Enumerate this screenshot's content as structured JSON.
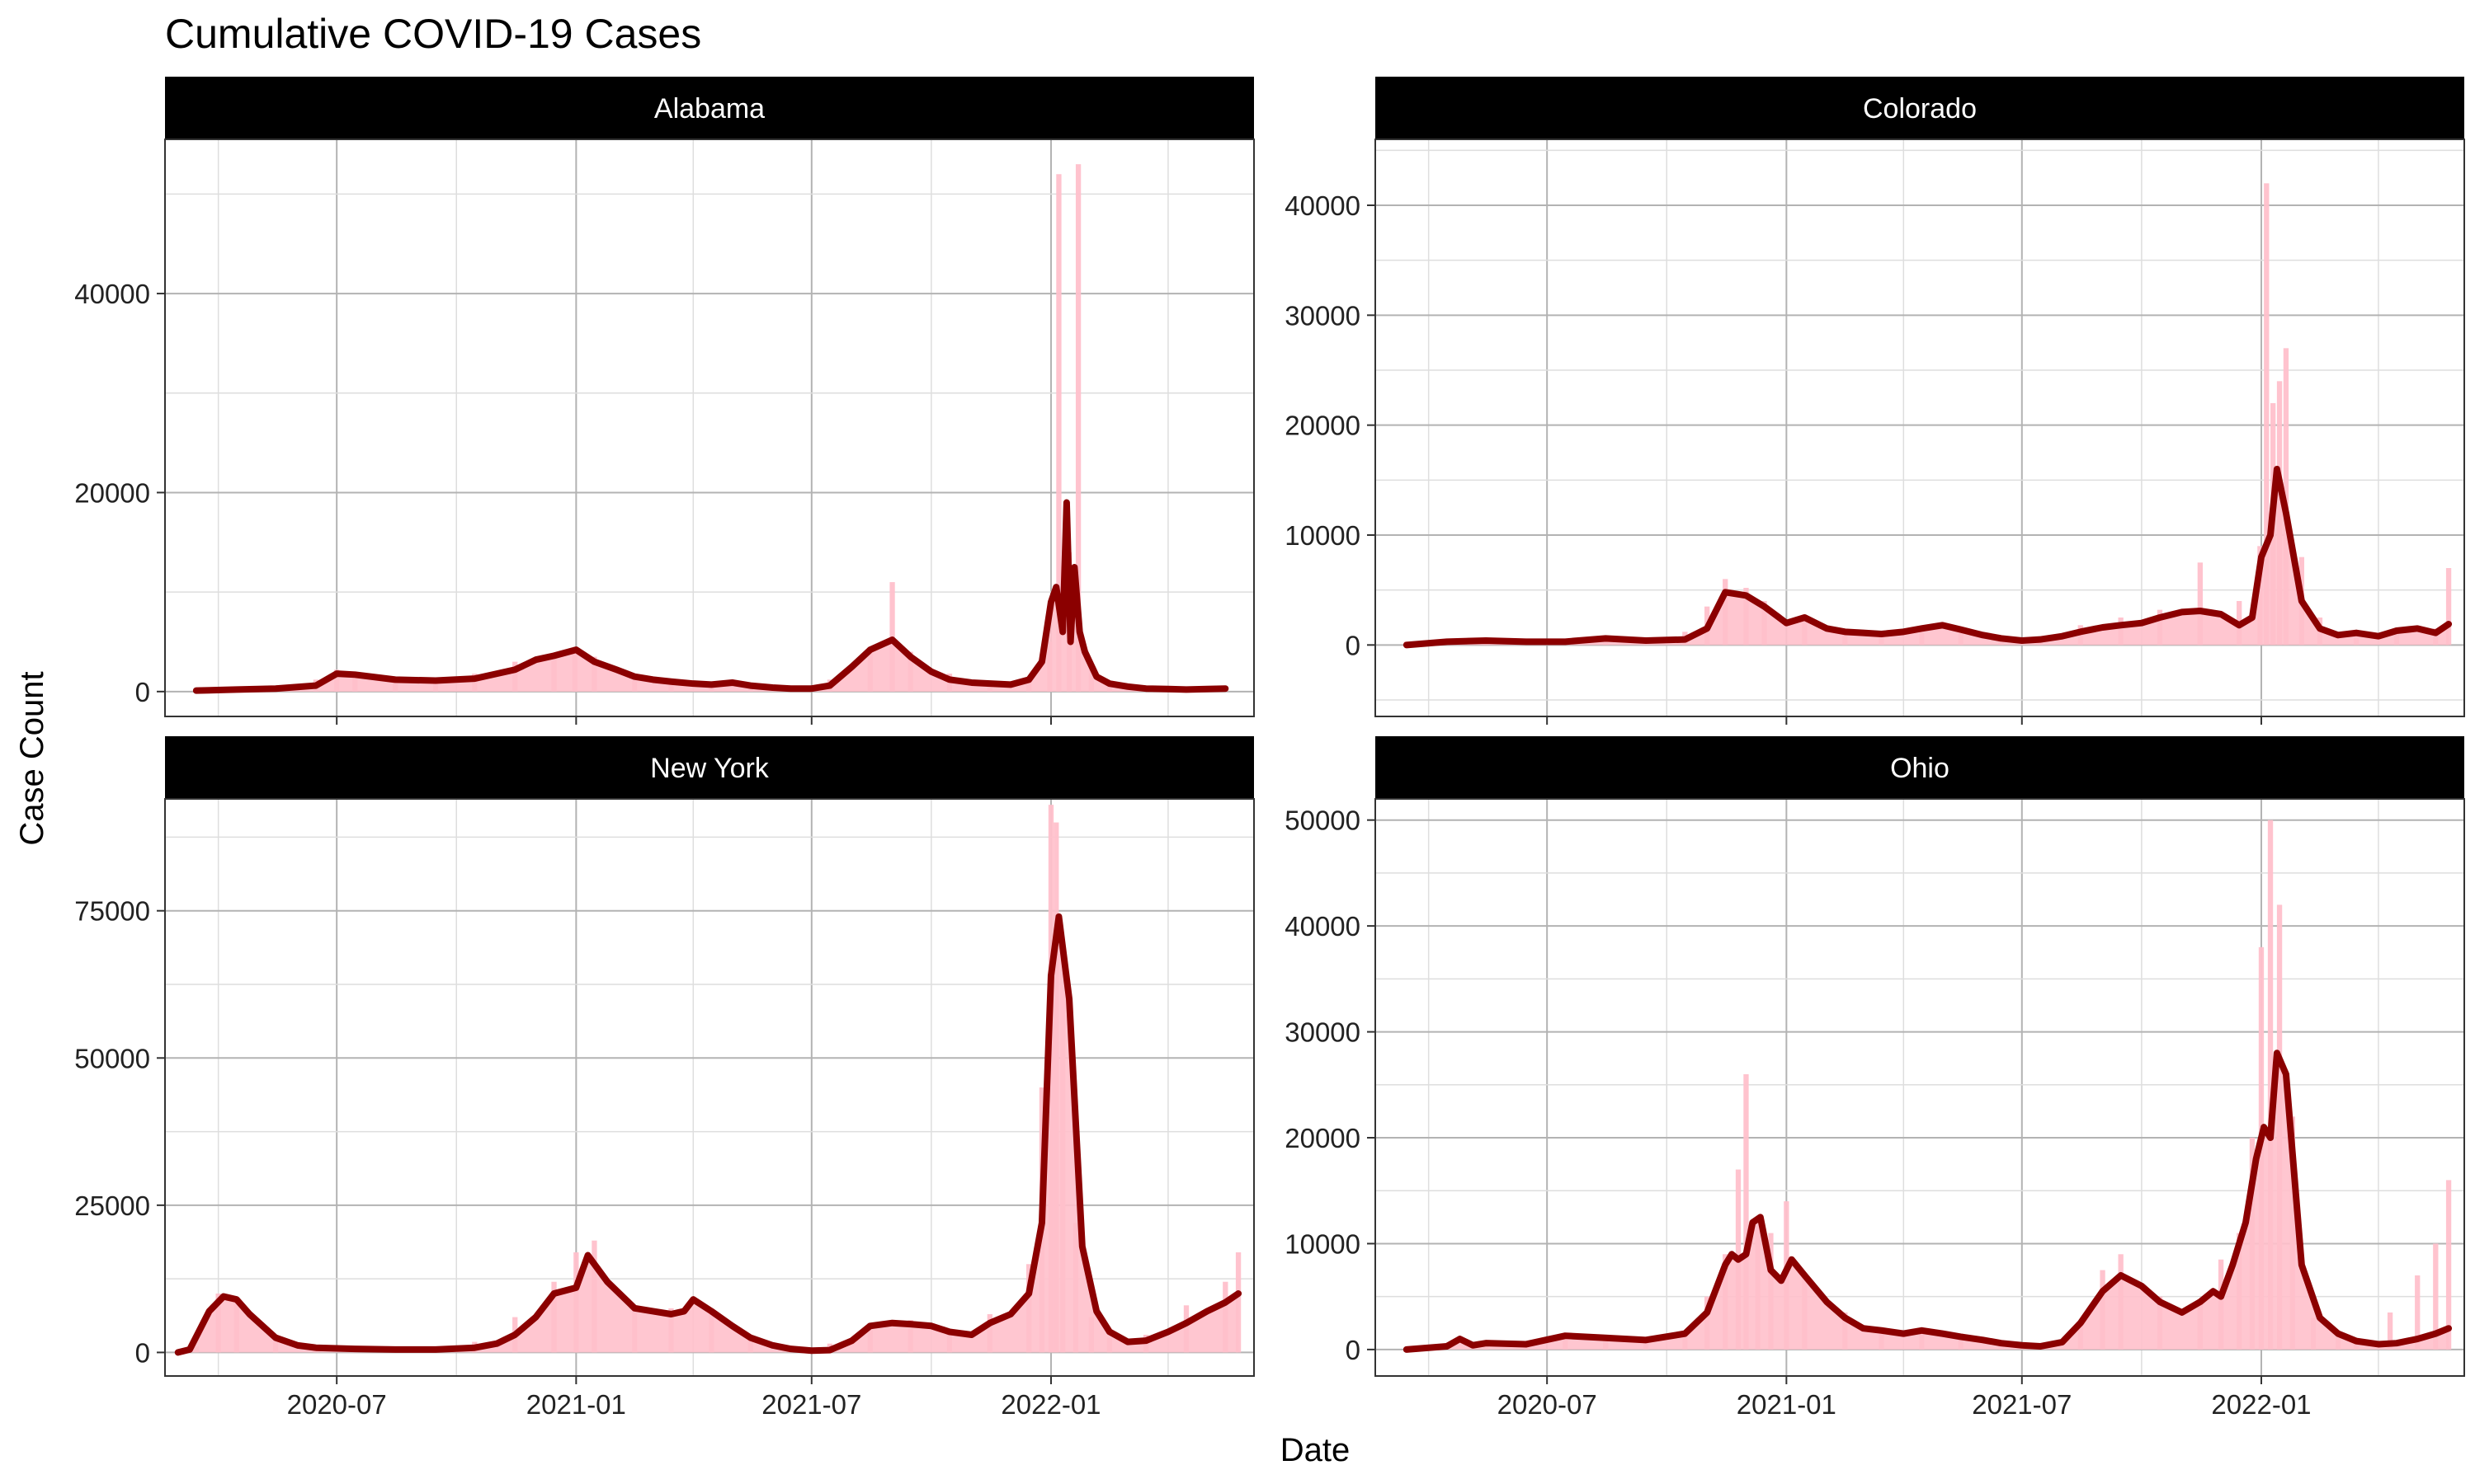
{
  "figure": {
    "title": "Cumulative COVID-19 Cases",
    "xlabel": "Date",
    "ylabel": "Case Count"
  },
  "colors": {
    "bars": "#ffc0cb",
    "line": "#8b0000",
    "strip": "#000000",
    "strip_text": "#ffffff",
    "grid_major": "#b3b3b3",
    "grid_minor": "#dedede"
  },
  "chart_data": [
    {
      "type": "bar",
      "title": "Alabama",
      "x_ticks": [
        "2020-07",
        "2021-01",
        "2021-07",
        "2022-01"
      ],
      "xlim": [
        "2020-02-20",
        "2022-06-06"
      ],
      "ylim": [
        -2500,
        55500
      ],
      "y_ticks": [
        0,
        20000,
        40000
      ],
      "series": [
        {
          "name": "",
          "render": "bar",
          "x": [
            "2020-03-15",
            "2020-04-15",
            "2020-05-15",
            "2020-06-15",
            "2020-07-01",
            "2020-07-15",
            "2020-08-15",
            "2020-09-15",
            "2020-10-15",
            "2020-11-15",
            "2020-12-15",
            "2020-12-31",
            "2021-01-15",
            "2021-02-15",
            "2021-03-15",
            "2021-04-15",
            "2021-05-15",
            "2021-06-15",
            "2021-07-15",
            "2021-08-15",
            "2021-09-01",
            "2021-09-15",
            "2021-10-15",
            "2021-11-15",
            "2021-12-15",
            "2021-12-31",
            "2022-01-07",
            "2022-01-15",
            "2022-01-22",
            "2022-02-01",
            "2022-02-15",
            "2022-03-15",
            "2022-04-15",
            "2022-05-15"
          ],
          "values": [
            200,
            400,
            500,
            1200,
            2200,
            1500,
            1500,
            1300,
            1800,
            3000,
            3500,
            4200,
            3500,
            1500,
            1000,
            600,
            400,
            300,
            1200,
            4500,
            11000,
            4000,
            1800,
            700,
            900,
            5000,
            52000,
            14000,
            53000,
            2500,
            1000,
            400,
            300,
            300
          ]
        },
        {
          "name": "",
          "render": "line",
          "x": [
            "2020-03-15",
            "2020-04-15",
            "2020-05-15",
            "2020-06-15",
            "2020-07-01",
            "2020-07-15",
            "2020-08-15",
            "2020-09-15",
            "2020-10-15",
            "2020-11-15",
            "2020-12-01",
            "2020-12-15",
            "2021-01-01",
            "2021-01-15",
            "2021-02-01",
            "2021-02-15",
            "2021-03-01",
            "2021-03-15",
            "2021-04-01",
            "2021-04-15",
            "2021-05-01",
            "2021-05-15",
            "2021-06-01",
            "2021-06-15",
            "2021-07-01",
            "2021-07-15",
            "2021-08-01",
            "2021-08-15",
            "2021-09-01",
            "2021-09-15",
            "2021-10-01",
            "2021-10-15",
            "2021-11-01",
            "2021-11-15",
            "2021-12-01",
            "2021-12-15",
            "2021-12-25",
            "2022-01-01",
            "2022-01-05",
            "2022-01-10",
            "2022-01-13",
            "2022-01-16",
            "2022-01-19",
            "2022-01-23",
            "2022-01-27",
            "2022-02-05",
            "2022-02-15",
            "2022-03-01",
            "2022-03-15",
            "2022-04-01",
            "2022-04-15",
            "2022-05-01",
            "2022-05-15"
          ],
          "values": [
            100,
            200,
            300,
            600,
            1800,
            1700,
            1200,
            1100,
            1300,
            2200,
            3200,
            3600,
            4200,
            3000,
            2200,
            1500,
            1200,
            1000,
            800,
            700,
            900,
            600,
            400,
            300,
            300,
            600,
            2500,
            4200,
            5200,
            3500,
            2000,
            1200,
            900,
            800,
            700,
            1200,
            3000,
            9000,
            10500,
            6000,
            19000,
            5000,
            12500,
            6000,
            4000,
            1500,
            800,
            500,
            300,
            250,
            200,
            250,
            300
          ]
        }
      ]
    },
    {
      "type": "bar",
      "title": "Colorado",
      "x_ticks": [
        "2020-07",
        "2021-01",
        "2021-07",
        "2022-01"
      ],
      "xlim": [
        "2020-02-20",
        "2022-06-06"
      ],
      "ylim": [
        -6500,
        46000
      ],
      "y_ticks": [
        0,
        10000,
        20000,
        30000,
        40000
      ],
      "series": [
        {
          "name": "",
          "render": "bar",
          "x": [
            "2020-03-15",
            "2020-04-15",
            "2020-05-15",
            "2020-06-15",
            "2020-07-15",
            "2020-08-15",
            "2020-09-15",
            "2020-10-15",
            "2020-11-01",
            "2020-11-15",
            "2020-12-01",
            "2020-12-15",
            "2021-01-15",
            "2021-02-15",
            "2021-03-15",
            "2021-04-15",
            "2021-05-15",
            "2021-06-15",
            "2021-07-15",
            "2021-08-15",
            "2021-09-15",
            "2021-10-15",
            "2021-11-15",
            "2021-12-15",
            "2021-12-31",
            "2022-01-05",
            "2022-01-10",
            "2022-01-15",
            "2022-01-20",
            "2022-02-01",
            "2022-02-15",
            "2022-03-15",
            "2022-04-15",
            "2022-05-15",
            "2022-05-25"
          ],
          "values": [
            300,
            500,
            400,
            300,
            500,
            400,
            500,
            1200,
            3500,
            6000,
            5200,
            4000,
            2500,
            1200,
            1000,
            1500,
            1600,
            700,
            600,
            1800,
            2500,
            3200,
            7500,
            4000,
            9000,
            42000,
            22000,
            24000,
            27000,
            8000,
            2500,
            1200,
            1500,
            1500,
            7000
          ]
        },
        {
          "name": "",
          "render": "line",
          "x": [
            "2020-03-15",
            "2020-04-15",
            "2020-05-15",
            "2020-06-15",
            "2020-07-15",
            "2020-08-15",
            "2020-09-15",
            "2020-10-15",
            "2020-11-01",
            "2020-11-15",
            "2020-12-01",
            "2020-12-15",
            "2021-01-01",
            "2021-01-15",
            "2021-02-01",
            "2021-02-15",
            "2021-03-01",
            "2021-03-15",
            "2021-04-01",
            "2021-04-15",
            "2021-05-01",
            "2021-05-15",
            "2021-06-01",
            "2021-06-15",
            "2021-07-01",
            "2021-07-15",
            "2021-08-01",
            "2021-08-15",
            "2021-09-01",
            "2021-09-15",
            "2021-10-01",
            "2021-10-15",
            "2021-11-01",
            "2021-11-15",
            "2021-12-01",
            "2021-12-15",
            "2021-12-25",
            "2022-01-01",
            "2022-01-08",
            "2022-01-13",
            "2022-01-20",
            "2022-02-01",
            "2022-02-15",
            "2022-03-01",
            "2022-03-15",
            "2022-04-01",
            "2022-04-15",
            "2022-05-01",
            "2022-05-15",
            "2022-05-25"
          ],
          "values": [
            0,
            300,
            400,
            300,
            300,
            600,
            400,
            500,
            1500,
            4800,
            4500,
            3500,
            2000,
            2500,
            1500,
            1200,
            1100,
            1000,
            1200,
            1500,
            1800,
            1400,
            900,
            600,
            400,
            500,
            800,
            1200,
            1600,
            1800,
            2000,
            2500,
            3000,
            3100,
            2800,
            1800,
            2500,
            8000,
            10000,
            16000,
            12000,
            4000,
            1500,
            900,
            1100,
            800,
            1300,
            1500,
            1100,
            1900
          ]
        }
      ]
    },
    {
      "type": "bar",
      "title": "New York",
      "x_ticks": [
        "2020-07",
        "2021-01",
        "2021-07",
        "2022-01"
      ],
      "xlim": [
        "2020-02-20",
        "2022-06-06"
      ],
      "ylim": [
        -4000,
        94000
      ],
      "y_ticks": [
        0,
        25000,
        50000,
        75000
      ],
      "series": [
        {
          "name": "",
          "render": "bar",
          "x": [
            "2020-03-15",
            "2020-04-01",
            "2020-04-15",
            "2020-05-15",
            "2020-06-15",
            "2020-07-15",
            "2020-08-15",
            "2020-09-15",
            "2020-10-15",
            "2020-11-15",
            "2020-12-15",
            "2021-01-01",
            "2021-01-15",
            "2021-02-15",
            "2021-03-15",
            "2021-04-15",
            "2021-05-15",
            "2021-06-15",
            "2021-07-15",
            "2021-08-15",
            "2021-09-15",
            "2021-10-15",
            "2021-11-15",
            "2021-12-15",
            "2021-12-25",
            "2022-01-01",
            "2022-01-05",
            "2022-01-10",
            "2022-01-20",
            "2022-02-01",
            "2022-02-15",
            "2022-03-15",
            "2022-04-15",
            "2022-05-15",
            "2022-05-25"
          ],
          "values": [
            1000,
            10000,
            9000,
            3000,
            800,
            700,
            600,
            900,
            1800,
            6000,
            12000,
            17000,
            19000,
            8000,
            7500,
            7000,
            2500,
            800,
            1500,
            5000,
            5500,
            4000,
            6500,
            15000,
            45000,
            93000,
            90000,
            65000,
            22000,
            6000,
            2500,
            3000,
            8000,
            12000,
            17000
          ]
        },
        {
          "name": "",
          "render": "line",
          "x": [
            "2020-03-01",
            "2020-03-10",
            "2020-03-25",
            "2020-04-05",
            "2020-04-15",
            "2020-04-25",
            "2020-05-15",
            "2020-06-01",
            "2020-06-15",
            "2020-07-15",
            "2020-08-15",
            "2020-09-15",
            "2020-10-15",
            "2020-11-01",
            "2020-11-15",
            "2020-12-01",
            "2020-12-15",
            "2021-01-01",
            "2021-01-10",
            "2021-01-25",
            "2021-02-15",
            "2021-03-01",
            "2021-03-15",
            "2021-03-25",
            "2021-04-01",
            "2021-04-15",
            "2021-05-01",
            "2021-05-15",
            "2021-06-01",
            "2021-06-15",
            "2021-07-01",
            "2021-07-15",
            "2021-08-01",
            "2021-08-15",
            "2021-09-01",
            "2021-09-15",
            "2021-10-01",
            "2021-10-15",
            "2021-11-01",
            "2021-11-15",
            "2021-12-01",
            "2021-12-15",
            "2021-12-25",
            "2022-01-01",
            "2022-01-07",
            "2022-01-15",
            "2022-01-25",
            "2022-02-05",
            "2022-02-15",
            "2022-03-01",
            "2022-03-15",
            "2022-04-01",
            "2022-04-15",
            "2022-05-01",
            "2022-05-15",
            "2022-05-25"
          ],
          "values": [
            0,
            500,
            7000,
            9500,
            9000,
            6500,
            2500,
            1200,
            800,
            600,
            500,
            500,
            800,
            1500,
            3000,
            6000,
            10000,
            11000,
            16500,
            12000,
            7500,
            7000,
            6500,
            7000,
            9000,
            7000,
            4500,
            2500,
            1200,
            600,
            300,
            400,
            2000,
            4500,
            5000,
            4800,
            4500,
            3500,
            3000,
            5000,
            6500,
            10000,
            22000,
            64000,
            74000,
            60000,
            18000,
            7000,
            3500,
            1800,
            2000,
            3500,
            5000,
            7000,
            8500,
            10000
          ]
        }
      ]
    },
    {
      "type": "bar",
      "title": "Ohio",
      "x_ticks": [
        "2020-07",
        "2021-01",
        "2021-07",
        "2022-01"
      ],
      "xlim": [
        "2020-02-20",
        "2022-06-06"
      ],
      "ylim": [
        -2500,
        52000
      ],
      "y_ticks": [
        0,
        10000,
        20000,
        30000,
        40000,
        50000
      ],
      "series": [
        {
          "name": "",
          "render": "bar",
          "x": [
            "2020-03-15",
            "2020-04-15",
            "2020-05-15",
            "2020-06-15",
            "2020-07-15",
            "2020-08-15",
            "2020-09-15",
            "2020-10-15",
            "2020-11-01",
            "2020-11-15",
            "2020-11-25",
            "2020-12-01",
            "2020-12-10",
            "2020-12-20",
            "2021-01-01",
            "2021-01-15",
            "2021-02-15",
            "2021-03-15",
            "2021-04-15",
            "2021-05-15",
            "2021-06-15",
            "2021-07-15",
            "2021-08-15",
            "2021-09-01",
            "2021-09-15",
            "2021-10-15",
            "2021-11-15",
            "2021-12-01",
            "2021-12-15",
            "2021-12-25",
            "2022-01-01",
            "2022-01-08",
            "2022-01-15",
            "2022-01-25",
            "2022-02-10",
            "2022-03-01",
            "2022-03-15",
            "2022-04-10",
            "2022-05-01",
            "2022-05-15",
            "2022-05-25"
          ],
          "values": [
            200,
            600,
            600,
            700,
            1300,
            1200,
            1000,
            1500,
            5000,
            9000,
            17000,
            26000,
            12000,
            11000,
            14000,
            7000,
            3500,
            1800,
            2000,
            1500,
            600,
            500,
            2500,
            7500,
            9000,
            5000,
            4500,
            8500,
            11000,
            20000,
            38000,
            50000,
            42000,
            22000,
            3000,
            1500,
            1000,
            3500,
            7000,
            10000,
            16000
          ]
        },
        {
          "name": "",
          "render": "line",
          "x": [
            "2020-03-15",
            "2020-04-15",
            "2020-04-25",
            "2020-05-05",
            "2020-05-15",
            "2020-06-15",
            "2020-07-15",
            "2020-08-15",
            "2020-09-15",
            "2020-10-15",
            "2020-11-01",
            "2020-11-15",
            "2020-11-20",
            "2020-11-25",
            "2020-12-01",
            "2020-12-06",
            "2020-12-12",
            "2020-12-20",
            "2020-12-28",
            "2021-01-05",
            "2021-01-15",
            "2021-02-01",
            "2021-02-15",
            "2021-03-01",
            "2021-03-15",
            "2021-04-01",
            "2021-04-15",
            "2021-05-01",
            "2021-05-15",
            "2021-06-01",
            "2021-06-15",
            "2021-07-01",
            "2021-07-15",
            "2021-08-01",
            "2021-08-15",
            "2021-09-01",
            "2021-09-15",
            "2021-10-01",
            "2021-10-15",
            "2021-11-01",
            "2021-11-15",
            "2021-11-25",
            "2021-12-01",
            "2021-12-10",
            "2021-12-20",
            "2021-12-28",
            "2022-01-03",
            "2022-01-08",
            "2022-01-13",
            "2022-01-20",
            "2022-02-01",
            "2022-02-15",
            "2022-03-01",
            "2022-03-15",
            "2022-04-01",
            "2022-04-15",
            "2022-05-01",
            "2022-05-15",
            "2022-05-25"
          ],
          "values": [
            0,
            300,
            1000,
            400,
            600,
            500,
            1300,
            1100,
            900,
            1500,
            3500,
            8000,
            9000,
            8500,
            9000,
            12000,
            12500,
            7500,
            6500,
            8500,
            7000,
            4500,
            3000,
            2000,
            1800,
            1500,
            1800,
            1500,
            1200,
            900,
            600,
            400,
            300,
            700,
            2500,
            5500,
            7000,
            6000,
            4500,
            3500,
            4500,
            5500,
            5000,
            8000,
            12000,
            18000,
            21000,
            20000,
            28000,
            26000,
            8000,
            3000,
            1500,
            800,
            500,
            600,
            1000,
            1500,
            2000
          ]
        }
      ]
    }
  ]
}
